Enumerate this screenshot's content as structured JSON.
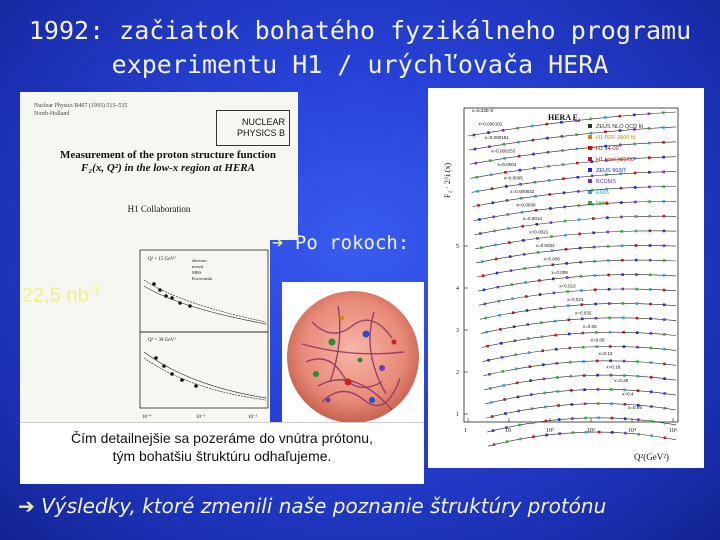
{
  "slide": {
    "title_line1": "1992: začiatok bohatého fyzikálneho programu",
    "title_line2": "experimentu H1 / urýchľovača HERA",
    "arrow_glyph": "➔",
    "po_rokoch": "Po rokoch:",
    "luminosity": "22,5 nb",
    "luminosity_exp": "-1",
    "caption_line1": "Čím detailnejšie sa pozeráme do vnútra prótonu,",
    "caption_line2": "tým bohatšiu štruktúru odhaľujeme.",
    "bottom_text": "Výsledky, ktoré zmenili naše poznanie štruktúry protónu"
  },
  "paper": {
    "cite_line1": "Nuclear Physics B407 (1993) 515–535",
    "cite_line2": "North-Holland",
    "journal_line1": "NUCLEAR",
    "journal_line2": "PHYSICS B",
    "title_line1": "Measurement of the proton structure function",
    "title_line2": "F₂(x, Q²) in the low-x region at HERA",
    "collaboration": "H1 Collaboration"
  },
  "plot_left": {
    "panel_labels": [
      "Q² = 15 GeV²",
      "Q² = 30 GeV²"
    ],
    "legend": [
      "electron",
      "mixed",
      "MRS",
      "Kwiecinski"
    ],
    "x_ticks": [
      "10⁻⁴",
      "10⁻³",
      "10⁻²"
    ]
  },
  "hera_plot": {
    "title": "HERA F",
    "title_sub": "2",
    "ylabel": "F₂ · 2^i (x)",
    "xlabel": "Q²(GeV²)",
    "legend": [
      {
        "label": "ZEUS NLO QCD fit",
        "color": "#333333"
      },
      {
        "label": "H1 PDF 2000 fit",
        "color": "#cc8800"
      },
      {
        "label": "H1 94-00",
        "color": "#d01010"
      },
      {
        "label": "H1 (prel.) 99/00",
        "color": "#d01010"
      },
      {
        "label": "ZEUS 96/97",
        "color": "#1030d0"
      },
      {
        "label": "BCDMS",
        "color": "#7a30c0"
      },
      {
        "label": "E665",
        "color": "#30a0d0"
      },
      {
        "label": "NMC",
        "color": "#30b030"
      }
    ],
    "x_labels": [
      "x=6.32E-5",
      "x=0.000102",
      "x=0.000161",
      "x=0.000253",
      "x=0.0004",
      "x=0.0005",
      "x=0.000632",
      "x=0.0008",
      "x=0.0013",
      "x=0.0021",
      "x=0.0032",
      "x=0.005",
      "x=0.008",
      "x=0.013",
      "x=0.021",
      "x=0.032",
      "x=0.05",
      "x=0.08",
      "x=0.13",
      "x=0.18",
      "x=0.25",
      "x=0.4",
      "x=0.65"
    ],
    "y_ticks": [
      "1",
      "2",
      "3",
      "4",
      "5"
    ],
    "x_ticks": [
      "1",
      "10",
      "10²",
      "10³",
      "10⁴",
      "10⁵"
    ]
  }
}
